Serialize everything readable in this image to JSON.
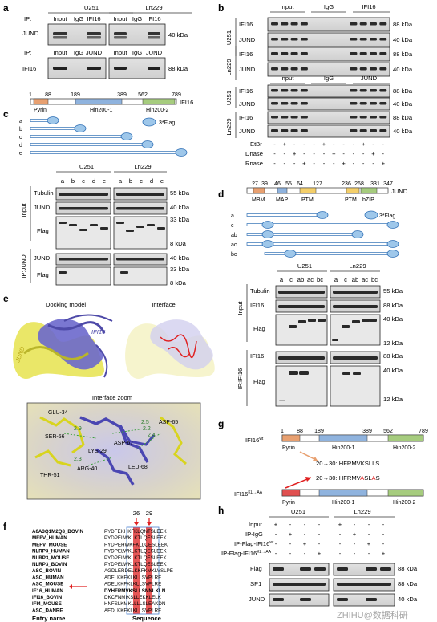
{
  "colors": {
    "pyrin": "#e8a070",
    "hin1": "#8fb3de",
    "hin2": "#a6cc7e",
    "mbm": "#e8a070",
    "map": "#8fb3de",
    "ptm": "#f4cf6a",
    "bzip": "#a6cc7e",
    "flag": "#9ec7ea",
    "jund_model": "#e3e04a",
    "ifi16_model": "#6a66c8",
    "red": "#e02020"
  },
  "panels": {
    "a": "a",
    "b": "b",
    "c": "c",
    "d": "d",
    "e": "e",
    "f": "f",
    "g": "g",
    "h": "h"
  },
  "a": {
    "cells": [
      "U251",
      "Ln229"
    ],
    "row1": {
      "ip": "IP:",
      "lanes": [
        "Input",
        "IgG",
        "IFI16"
      ],
      "blot": "JUND",
      "kda": "40 kDa"
    },
    "row2": {
      "ip": "IP:",
      "lanes": [
        "Input",
        "IgG",
        "JUND"
      ],
      "blot": "IFI16",
      "kda": "88 kDa"
    }
  },
  "b": {
    "top_headers": [
      "Input",
      "IgG",
      "IFI16"
    ],
    "bottom_headers": [
      "Input",
      "IgG",
      "JUND"
    ],
    "cells": [
      "U251",
      "Ln229"
    ],
    "blots": [
      "IFI16",
      "JUND"
    ],
    "kda": [
      "88 kDa",
      "40 kDa"
    ],
    "treat_labels": [
      "EtBr",
      "Dnase",
      "Rnase"
    ],
    "treat_rows": [
      [
        "-",
        "+",
        "-",
        "-",
        "-",
        "+",
        "-",
        "-",
        "-",
        "+",
        "-",
        "-"
      ],
      [
        "-",
        "-",
        "+",
        "-",
        "-",
        "-",
        "+",
        "-",
        "-",
        "-",
        "+",
        "-"
      ],
      [
        "-",
        "-",
        "-",
        "+",
        "-",
        "-",
        "-",
        "+",
        "-",
        "-",
        "-",
        "+"
      ]
    ]
  },
  "c": {
    "positions": [
      "1",
      "88",
      "189",
      "389",
      "562",
      "789"
    ],
    "protein": "IFI16",
    "domains": [
      "Pyrin",
      "Hin200-1",
      "Hin200-2"
    ],
    "flag_label": "3*Flag",
    "constructs": [
      "a",
      "b",
      "c",
      "d",
      "e"
    ],
    "cells": [
      "U251",
      "Ln229"
    ],
    "lanes": [
      "a",
      "b",
      "c",
      "d",
      "e"
    ],
    "groups": [
      "Input",
      "IP:JUND"
    ],
    "blots": [
      "Tubulin",
      "JUND",
      "Flag",
      "JUND",
      "Flag"
    ],
    "kda": [
      "55 kDa",
      "40 kDa",
      "33 kDa",
      "8 kDa",
      "40 kDa",
      "33 kDa",
      "8 kDa"
    ]
  },
  "d": {
    "positions": [
      "27",
      "39",
      "46",
      "55",
      "64",
      "127",
      "236",
      "268",
      "331",
      "347"
    ],
    "protein": "JUND",
    "domains": [
      "MBM",
      "MAP",
      "PTM",
      "PTM",
      "bZIP"
    ],
    "flag_label": "3*Flag",
    "constructs": [
      "a",
      "c",
      "ab",
      "ac",
      "bc"
    ],
    "cells": [
      "U251",
      "Ln229"
    ],
    "lanes": [
      "a",
      "c",
      "ab",
      "ac",
      "bc"
    ],
    "groups": [
      "Input",
      "IP:IFI16"
    ],
    "blots": [
      "Tubulin",
      "IFI16",
      "Flag",
      "IFI16",
      "Flag"
    ],
    "kda": [
      "55 kDa",
      "88 kDa",
      "40 kDa",
      "12 kDa",
      "88 kDa",
      "40 kDa",
      "12 kDa"
    ]
  },
  "e": {
    "docking": "Docking model",
    "interface": "Interface",
    "ifi16": "IFI16",
    "jund": "JUND",
    "zoom": "Interface zoom",
    "residues": [
      "GLU-34",
      "SER-56",
      "THR-51",
      "ARG-40",
      "LYS-29",
      "ASP-67",
      "LEU-68",
      "ASP-65"
    ],
    "distances": [
      "2.9",
      "2.5",
      "2.2",
      "2.4",
      "2.3"
    ]
  },
  "f": {
    "entries": [
      "A0A3Q1M2Q8_BOVIN",
      "MEFV_HUMAN",
      "MEFV_MOUSE",
      "NLRP3_HUMAN",
      "NLRP3_MOUSE",
      "NLRP3_BOVIN",
      "ASC_BOVIN",
      "ASC_HUMAN",
      "ASC_MOUSE",
      "IF16_HUMAN",
      "IFI16_BOVIN",
      "IFI4_MOUSE",
      "ASC_DANRE"
    ],
    "seqs": [
      "PYDFEKHKFKLQNTSLEEK",
      "PYDPELWKLKTLQESLEEK",
      "PYDPEHWKFKLLQESLEEK",
      "PYDPELWKLKTLQESLEEK",
      "PYDPELWKLKTLQESLEEK",
      "PYDPELWKLKTLQESLEEK",
      "AGDLERDELKKFKMKLVSLPE",
      "ADELKKFKLKLLSVPLRE",
      "ADELKKFKLKLLSVPLRE",
      "DYHFRMVKSLLSNNLKLN",
      "DKCFNMIKSLLEKKLELK",
      "HNFSLKMKLLLLSLEAKDN",
      "AEDLKKFKLKLLSVPLRE"
    ],
    "markers": [
      "26",
      "29"
    ],
    "entry_label": "Entry name",
    "seq_label": "Sequence"
  },
  "g": {
    "positions": [
      "1",
      "88",
      "189",
      "389",
      "562",
      "789"
    ],
    "wt": "IFI16",
    "wt_sup": "wt",
    "mut": "IFI16",
    "mut_sup": "KL→AA",
    "domains": [
      "Pyrin",
      "Hin200-1",
      "Hin200-2"
    ],
    "seq_wt_range": "20→30:",
    "seq_wt": "HFRMVKSLLS",
    "seq_mut_range": "20→30:",
    "seq_mut_pre": "HFRMV",
    "seq_mut_a1": "A",
    "seq_mut_mid": "SL",
    "seq_mut_a2": "A",
    "seq_mut_post": "S"
  },
  "h": {
    "cells": [
      "U251",
      "Ln229"
    ],
    "rows": [
      "Input",
      "IP-IgG",
      "IP-Flag-IFI16",
      "IP-Flag-IFI16"
    ],
    "sups": [
      "",
      "",
      "wt",
      "KL→AA"
    ],
    "signs": [
      [
        "+",
        "-",
        "-",
        "-",
        "+",
        "-",
        "-",
        "-"
      ],
      [
        "-",
        "+",
        "-",
        "-",
        "-",
        "+",
        "-",
        "-"
      ],
      [
        "-",
        "-",
        "+",
        "-",
        "-",
        "-",
        "+",
        "-"
      ],
      [
        "-",
        "-",
        "-",
        "+",
        "-",
        "-",
        "-",
        "+"
      ]
    ],
    "blots": [
      "Flag",
      "SP1",
      "JUND"
    ],
    "kda": [
      "88 kDa",
      "88 kDa",
      "40 kDa"
    ],
    "watermark": "ZHIHU@数据科研"
  }
}
